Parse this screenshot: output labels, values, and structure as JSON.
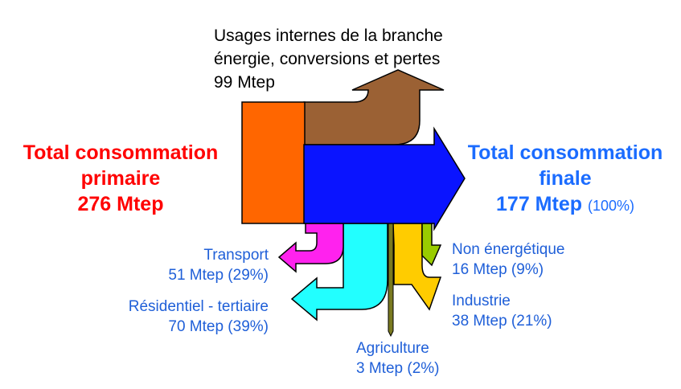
{
  "colors": {
    "primary_text": "#ff0000",
    "final_text": "#1b6cff",
    "sector_text": "#1f5fd8",
    "primary_block": "#ff6600",
    "losses_arrow": "#9b6134",
    "final_arrow": "#0a14ff",
    "transport": "#ff22ee",
    "residential": "#22ffff",
    "agriculture": "#7a7a20",
    "industry": "#ffcc00",
    "non_energy": "#99cc00"
  },
  "primary": {
    "line1": "Total consommation",
    "line2": "primaire",
    "line3": "276 Mtep"
  },
  "final": {
    "line1": "Total consommation",
    "line2": "finale",
    "value": "177 Mtep",
    "pct": "(100%)"
  },
  "losses": {
    "line1": "Usages internes de la branche",
    "line2": "énergie, conversions et pertes",
    "line3": "99 Mtep"
  },
  "sectors": {
    "transport": {
      "name": "Transport",
      "value": "51 Mtep (29%)"
    },
    "residential": {
      "name": "Résidentiel - tertiaire",
      "value": "70 Mtep (39%)"
    },
    "non_energy": {
      "name": "Non énergétique",
      "value": "16 Mtep (9%)"
    },
    "industry": {
      "name": "Industrie",
      "value": "38 Mtep (21%)"
    },
    "agriculture": {
      "name": "Agriculture",
      "value": "3 Mtep (2%)"
    }
  }
}
